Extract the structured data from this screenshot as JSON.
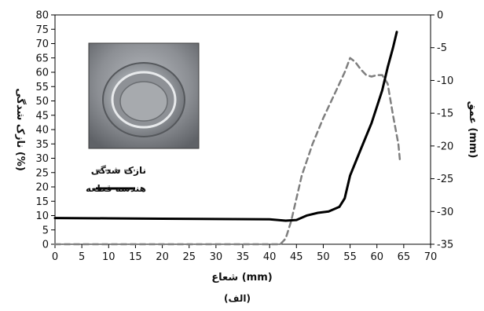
{
  "chart_data": {
    "type": "line",
    "xlabel": "شعاع (mm)",
    "ylabel_left": "نازک شدگی (%)",
    "ylabel_right": "عمق (mm)",
    "caption": "(الف)",
    "xlim": [
      0,
      70
    ],
    "ylim_left": [
      0,
      80
    ],
    "ylim_right": [
      -35,
      0
    ],
    "x_ticks": [
      0,
      5,
      10,
      15,
      20,
      25,
      30,
      35,
      40,
      45,
      50,
      55,
      60,
      65,
      70
    ],
    "y_left_ticks": [
      0,
      5,
      10,
      15,
      20,
      25,
      30,
      35,
      40,
      45,
      50,
      55,
      60,
      65,
      70,
      75,
      80
    ],
    "y_right_ticks": [
      0,
      -5,
      -10,
      -15,
      -20,
      -25,
      -30,
      -35
    ],
    "legend_position": "left-middle",
    "grid": false,
    "series": [
      {
        "name": "نازک شدگی",
        "axis": "left",
        "style": "dashed",
        "color": "#7f7f7f",
        "points": [
          [
            0,
            0
          ],
          [
            20,
            0
          ],
          [
            40,
            0
          ],
          [
            42,
            0
          ],
          [
            43,
            2
          ],
          [
            44,
            8
          ],
          [
            45,
            16
          ],
          [
            46,
            24
          ],
          [
            48,
            35
          ],
          [
            50,
            44
          ],
          [
            52,
            52
          ],
          [
            54,
            60
          ],
          [
            55,
            65
          ],
          [
            56,
            63.5
          ],
          [
            57,
            61
          ],
          [
            58,
            59
          ],
          [
            59,
            58.5
          ],
          [
            60,
            59
          ],
          [
            61,
            59
          ],
          [
            62,
            56
          ],
          [
            63,
            45
          ],
          [
            64,
            35
          ],
          [
            64.3,
            29
          ]
        ]
      },
      {
        "name": "هندسه قطعه",
        "axis": "right",
        "style": "solid",
        "color": "#000000",
        "points": [
          [
            0,
            -31
          ],
          [
            10,
            -31.05
          ],
          [
            20,
            -31.1
          ],
          [
            30,
            -31.15
          ],
          [
            40,
            -31.2
          ],
          [
            43,
            -31.4
          ],
          [
            45,
            -31.3
          ],
          [
            47,
            -30.6
          ],
          [
            49,
            -30.2
          ],
          [
            51,
            -30.0
          ],
          [
            53,
            -29.3
          ],
          [
            54,
            -28.0
          ],
          [
            55,
            -24.5
          ],
          [
            57,
            -20.5
          ],
          [
            59,
            -16.5
          ],
          [
            61,
            -11.5
          ],
          [
            62,
            -8
          ],
          [
            63,
            -5
          ],
          [
            63.7,
            -2.6
          ]
        ]
      }
    ]
  },
  "legend": {
    "items": [
      {
        "label": "نازک شدگی"
      },
      {
        "label": "هندسه قطعه"
      }
    ]
  },
  "photo": {
    "icon": "photo-icon"
  }
}
